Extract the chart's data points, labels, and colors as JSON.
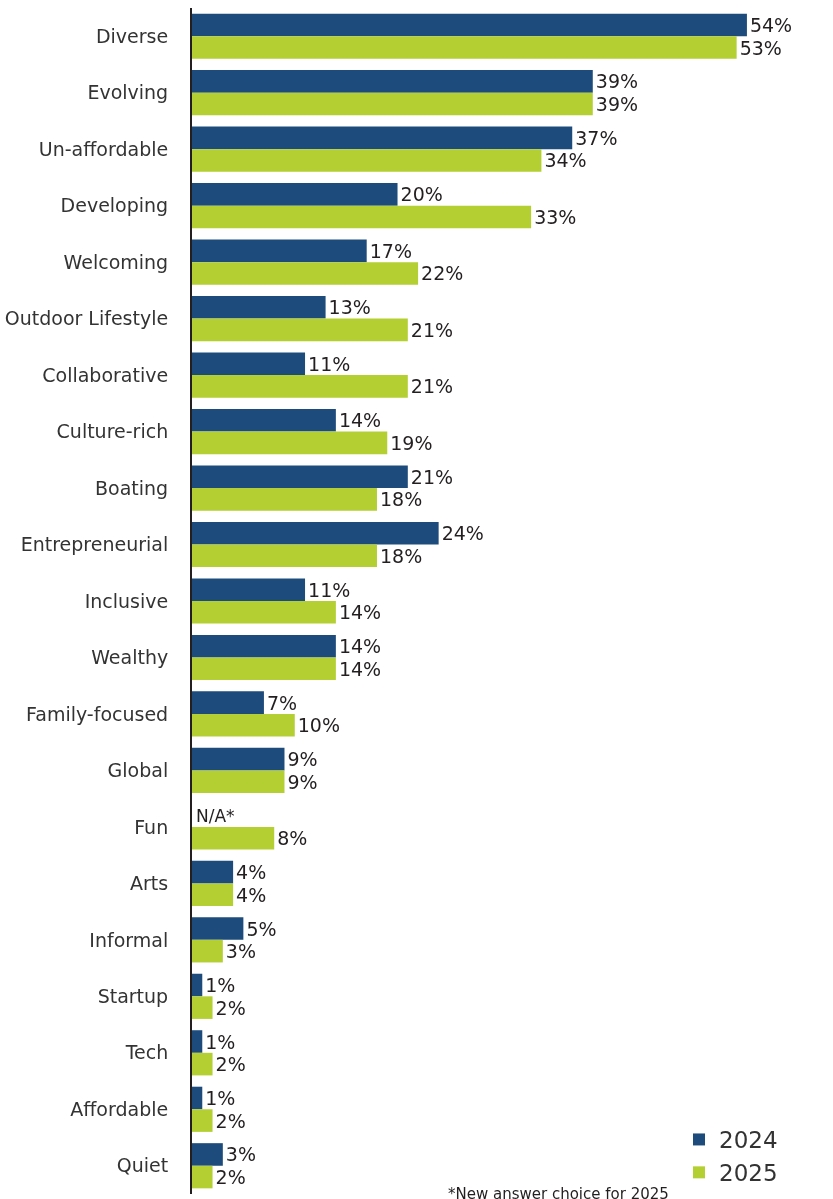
{
  "chart_data": {
    "type": "bar",
    "orientation": "horizontal",
    "categories": [
      "Diverse",
      "Evolving",
      "Un-affordable",
      "Developing",
      "Welcoming",
      "Outdoor Lifestyle",
      "Collaborative",
      "Culture-rich",
      "Boating",
      "Entrepreneurial",
      "Inclusive",
      "Wealthy",
      "Family-focused",
      "Global",
      "Fun",
      "Arts",
      "Informal",
      "Startup",
      "Tech",
      "Affordable",
      "Quiet"
    ],
    "series": [
      {
        "name": "2024",
        "color": "#1d4c7c",
        "values": [
          54,
          39,
          37,
          20,
          17,
          13,
          11,
          14,
          21,
          24,
          11,
          14,
          7,
          9,
          null,
          4,
          5,
          1,
          1,
          1,
          3
        ],
        "value_labels": [
          "54%",
          "39%",
          "37%",
          "20%",
          "17%",
          "13%",
          "11%",
          "14%",
          "21%",
          "24%",
          "11%",
          "14%",
          "7%",
          "9%",
          "N/A*",
          "4%",
          "5%",
          "1%",
          "1%",
          "1%",
          "3%"
        ]
      },
      {
        "name": "2025",
        "color": "#b3cf32",
        "values": [
          53,
          39,
          34,
          33,
          22,
          21,
          21,
          19,
          18,
          18,
          14,
          14,
          10,
          9,
          8,
          4,
          3,
          2,
          2,
          2,
          2
        ],
        "value_labels": [
          "53%",
          "39%",
          "34%",
          "33%",
          "22%",
          "21%",
          "21%",
          "19%",
          "18%",
          "18%",
          "14%",
          "14%",
          "10%",
          "9%",
          "8%",
          "4%",
          "3%",
          "2%",
          "2%",
          "2%",
          "2%"
        ]
      }
    ],
    "legend": "bottom right",
    "grid": false,
    "annotations": [
      "*New answer choice for 2025"
    ]
  }
}
